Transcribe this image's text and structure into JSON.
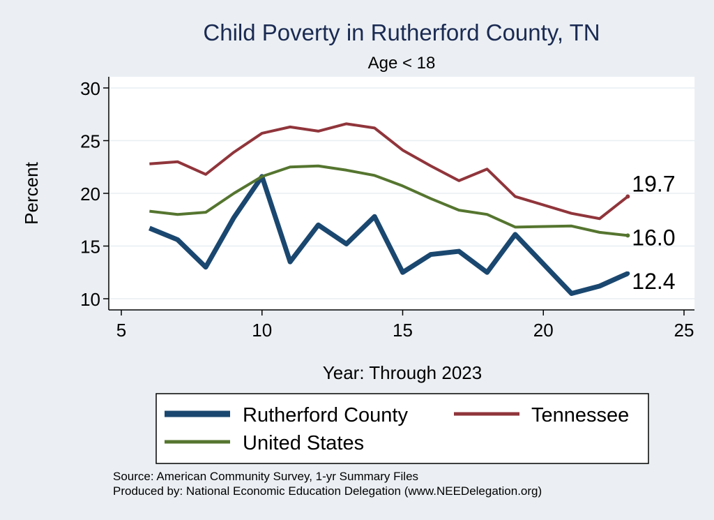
{
  "chart_data": {
    "type": "line",
    "title": "Child Poverty in Rutherford County, TN",
    "subtitle": "Age < 18",
    "xlabel": "Year: Through 2023",
    "ylabel": "Percent",
    "xlim": [
      5,
      25
    ],
    "ylim": [
      10,
      30
    ],
    "xticks": [
      5,
      10,
      15,
      20,
      25
    ],
    "yticks": [
      10,
      15,
      20,
      25,
      30
    ],
    "grid": true,
    "series": [
      {
        "name": "Rutherford County",
        "color": "#1a476f",
        "weight": "thick",
        "x": [
          6,
          7,
          8,
          9,
          10,
          11,
          12,
          13,
          14,
          15,
          16,
          17,
          18,
          19,
          21,
          22,
          23
        ],
        "y": [
          16.7,
          15.6,
          13.0,
          17.7,
          21.6,
          13.5,
          17.0,
          15.2,
          17.8,
          12.5,
          14.2,
          14.5,
          12.5,
          16.1,
          10.5,
          11.2,
          12.4
        ],
        "end_label": "12.4"
      },
      {
        "name": "Tennessee",
        "color": "#90353b",
        "weight": "medium",
        "x": [
          6,
          7,
          8,
          9,
          10,
          11,
          12,
          13,
          14,
          15,
          16,
          17,
          18,
          19,
          21,
          22,
          23
        ],
        "y": [
          22.8,
          23.0,
          21.8,
          23.9,
          25.7,
          26.3,
          25.9,
          26.6,
          26.2,
          24.1,
          22.6,
          21.2,
          22.3,
          19.7,
          18.1,
          17.6,
          19.7
        ],
        "end_label": "19.7"
      },
      {
        "name": "United States",
        "color": "#55752f",
        "weight": "medium",
        "x": [
          6,
          7,
          8,
          9,
          10,
          11,
          12,
          13,
          14,
          15,
          16,
          17,
          18,
          19,
          21,
          22,
          23
        ],
        "y": [
          18.3,
          18.0,
          18.2,
          20.0,
          21.6,
          22.5,
          22.6,
          22.2,
          21.7,
          20.7,
          19.5,
          18.4,
          18.0,
          16.8,
          16.9,
          16.3,
          16.0
        ],
        "end_label": "16.0"
      }
    ],
    "legend": {
      "position": "bottom",
      "entries": [
        "Rutherford County",
        "Tennessee",
        "United States"
      ]
    }
  },
  "source_note": "Source: American Community Survey, 1-yr Summary Files",
  "producer_note": "Produced by: National Economic Education Delegation (www.NEEDelegation.org)"
}
